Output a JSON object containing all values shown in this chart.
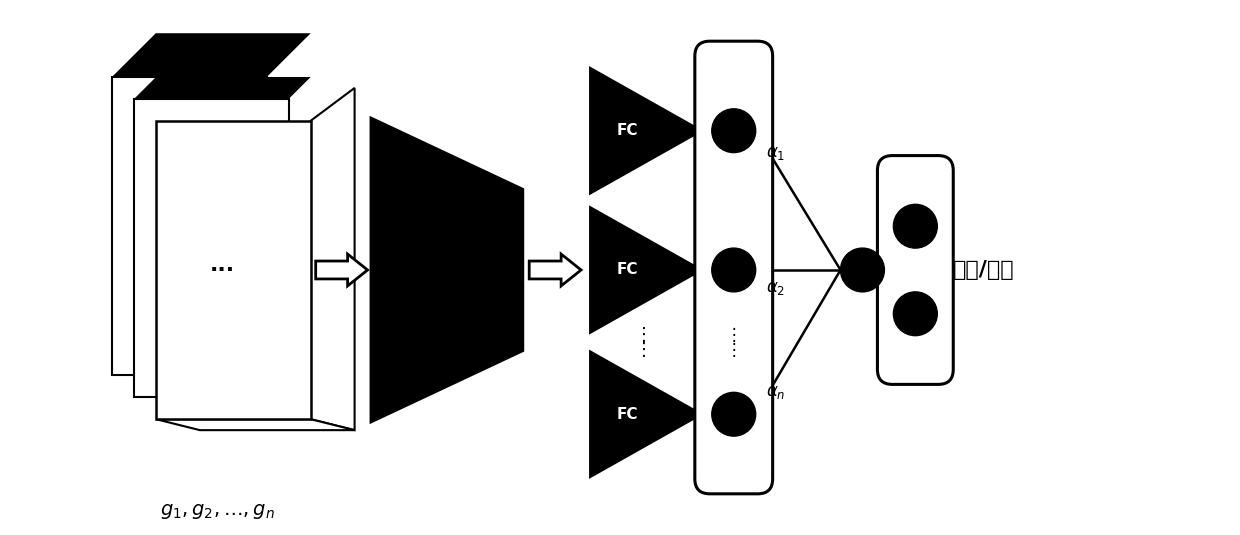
{
  "bg_color": "#ffffff",
  "black": "#000000",
  "white": "#ffffff",
  "fig_width": 12.4,
  "fig_height": 5.35,
  "label_malignant": "恶性/良性",
  "fc_label": "FC"
}
